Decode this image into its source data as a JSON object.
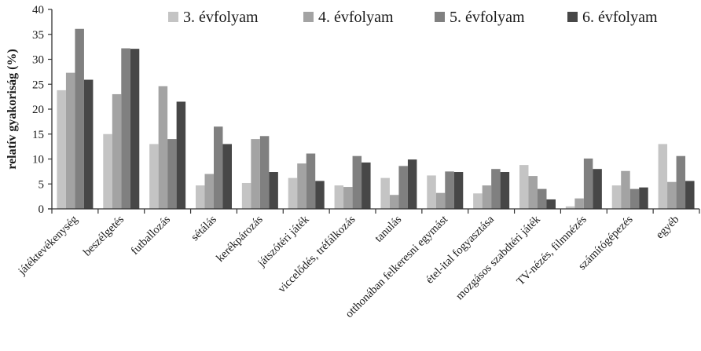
{
  "chart_data": {
    "type": "bar",
    "ylabel": "relatív gyakoriság (%)",
    "ylim": [
      0,
      40
    ],
    "yticks": [
      0,
      5,
      10,
      15,
      20,
      25,
      30,
      35,
      40
    ],
    "grid": false,
    "legend_position": "top-right",
    "categories": [
      "játéktevékenység",
      "beszélgetés",
      "futballozás",
      "sétálás",
      "kerékpározás",
      "játszótéri játék",
      "viccelődés, tréfálkozás",
      "tanulás",
      "otthonában felkeresni egymást",
      "étel-ital fogyasztása",
      "mozgásos szabdtéri játék",
      "TV-nézés, filmnézés",
      "számítógépezés",
      "egyéb"
    ],
    "series": [
      {
        "name": "3. évfolyam",
        "color": "#c4c4c4",
        "values": [
          23.8,
          15.0,
          13.0,
          4.7,
          5.2,
          6.2,
          4.7,
          6.2,
          6.7,
          3.1,
          8.8,
          0.5,
          4.7,
          13.0
        ]
      },
      {
        "name": "4. évfolyam",
        "color": "#a3a3a3",
        "values": [
          27.3,
          23.0,
          24.6,
          7.0,
          14.0,
          9.1,
          4.4,
          2.8,
          3.2,
          4.7,
          6.6,
          2.1,
          7.6,
          5.4
        ]
      },
      {
        "name": "5. évfolyam",
        "color": "#808080",
        "values": [
          36.1,
          32.2,
          14.0,
          16.5,
          14.6,
          11.1,
          10.6,
          8.6,
          7.5,
          8.0,
          4.0,
          10.1,
          4.0,
          10.6
        ]
      },
      {
        "name": "6. évfolyam",
        "color": "#474747",
        "values": [
          25.9,
          32.1,
          21.5,
          13.0,
          7.4,
          5.6,
          9.3,
          9.9,
          7.4,
          7.4,
          1.9,
          8.0,
          4.3,
          5.6
        ]
      }
    ]
  }
}
